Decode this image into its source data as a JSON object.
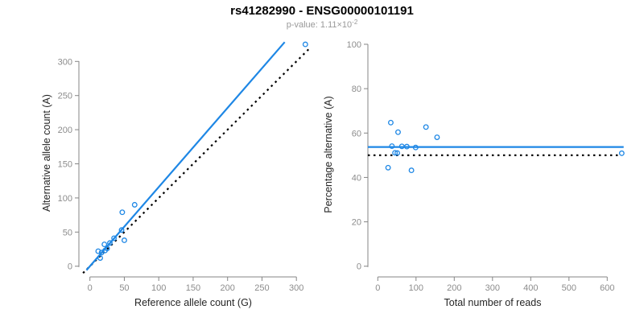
{
  "header": {
    "title": "rs41282990 - ENSG00000101191",
    "subtitle_base": "p-value: 1.11×10",
    "subtitle_exp": "-2",
    "subtitle_full": "p-value: 1.11×10^-2"
  },
  "colors": {
    "accent_blue": "#1e87e5",
    "dotted_black": "#000000",
    "axis_gray": "#858585",
    "tick_label_gray": "#8c8c8c",
    "axis_title_dark": "#262626",
    "title_black": "#000000",
    "subtitle_gray": "#999999"
  },
  "chart_data": [
    {
      "type": "scatter",
      "panel": "left",
      "xlabel": "Reference allele count (G)",
      "ylabel": "Alternative allele count (A)",
      "xticks": [
        0,
        50,
        100,
        150,
        200,
        250,
        300
      ],
      "yticks": [
        0,
        50,
        100,
        150,
        200,
        250,
        300
      ],
      "xlim": [
        -13,
        321
      ],
      "ylim": [
        -14,
        329
      ],
      "grid": false,
      "legend": "none",
      "point_style": "open-circle",
      "points": [
        [
          12,
          22
        ],
        [
          21,
          32
        ],
        [
          47,
          79
        ],
        [
          65,
          90
        ],
        [
          17,
          20
        ],
        [
          29,
          34
        ],
        [
          35,
          41
        ],
        [
          46,
          53
        ],
        [
          22,
          23
        ],
        [
          25,
          26
        ],
        [
          15,
          12
        ],
        [
          50,
          38
        ],
        [
          313,
          325
        ]
      ],
      "fit_line": {
        "style": "solid",
        "color": "#1e87e5",
        "slope": 1.16,
        "intercept": 0,
        "x_range": [
          -5,
          283
        ]
      },
      "identity_line": {
        "style": "dotted",
        "color": "#000000",
        "slope": 1,
        "intercept": 0,
        "x_range": [
          -10,
          321
        ]
      }
    },
    {
      "type": "scatter",
      "panel": "right",
      "xlabel": "Total number of reads",
      "ylabel": "Percentage alternative (A)",
      "xticks": [
        0,
        100,
        200,
        300,
        400,
        500,
        600
      ],
      "yticks": [
        0,
        20,
        40,
        60,
        80,
        100
      ],
      "xlim": [
        -26,
        664
      ],
      "ylim": [
        0,
        100
      ],
      "grid": false,
      "legend": "none",
      "point_style": "open-circle",
      "points": [
        [
          34,
          64.7
        ],
        [
          53,
          60.4
        ],
        [
          126,
          62.7
        ],
        [
          155,
          58.1
        ],
        [
          37,
          54.1
        ],
        [
          63,
          54.0
        ],
        [
          76,
          53.9
        ],
        [
          99,
          53.5
        ],
        [
          45,
          51.1
        ],
        [
          51,
          51.0
        ],
        [
          27,
          44.4
        ],
        [
          88,
          43.2
        ],
        [
          638,
          50.9
        ]
      ],
      "mean_line": {
        "style": "solid",
        "color": "#1e87e5",
        "y": 53.7,
        "x_range": [
          -26,
          643
        ]
      },
      "expected_line": {
        "style": "dotted",
        "color": "#000000",
        "y": 50,
        "x_range": [
          -26,
          633
        ]
      }
    }
  ]
}
